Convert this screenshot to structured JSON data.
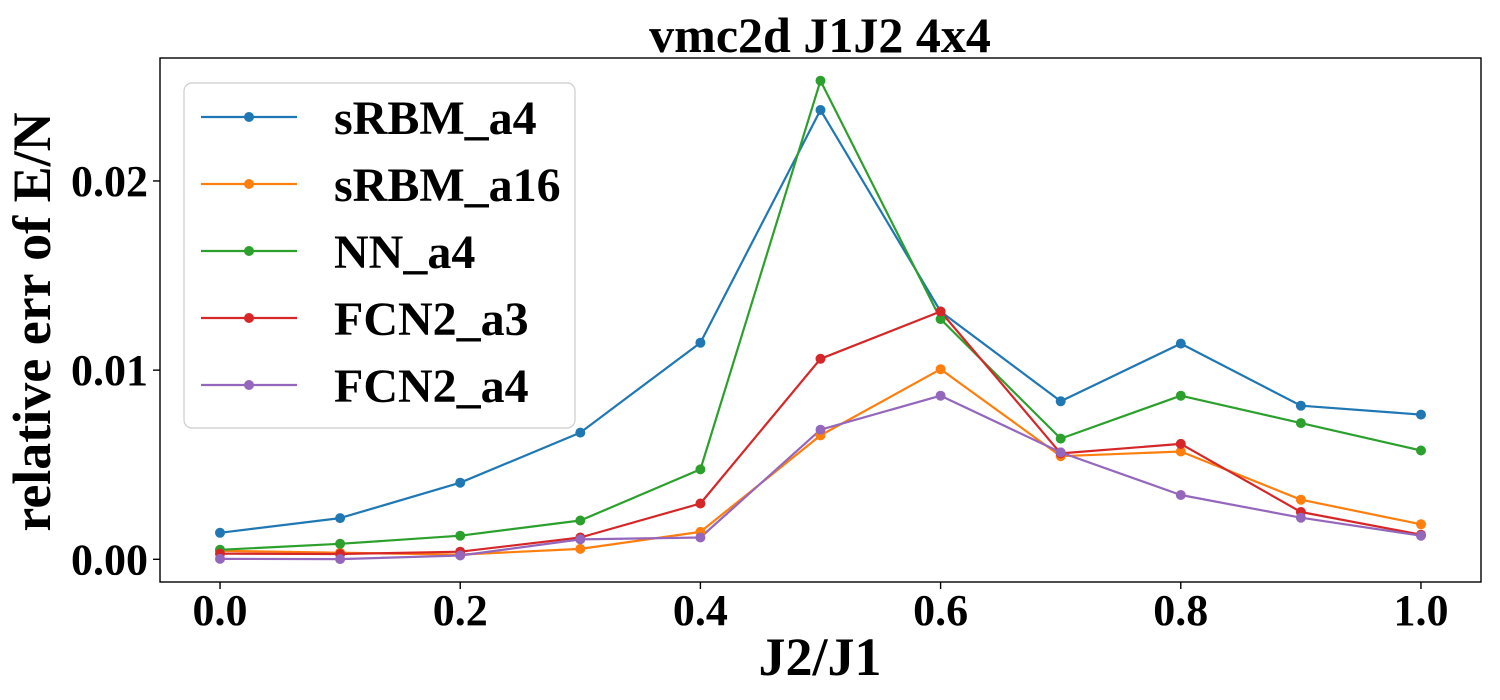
{
  "chart_data": {
    "type": "line",
    "title": "vmc2d J1J2 4x4",
    "xlabel": "J2/J1",
    "ylabel": "relative err of E/N",
    "x": [
      0.0,
      0.1,
      0.2,
      0.3,
      0.4,
      0.5,
      0.6,
      0.7,
      0.8,
      0.9,
      1.0
    ],
    "xlim": [
      -0.05,
      1.05
    ],
    "ylim": [
      -0.0012,
      0.0265
    ],
    "xticks": [
      0.0,
      0.2,
      0.4,
      0.6,
      0.8,
      1.0
    ],
    "xtick_labels": [
      "0.0",
      "0.2",
      "0.4",
      "0.6",
      "0.8",
      "1.0"
    ],
    "yticks": [
      0.0,
      0.01,
      0.02
    ],
    "ytick_labels": [
      "0.00",
      "0.01",
      "0.02"
    ],
    "grid": false,
    "legend_position": "top-left",
    "series": [
      {
        "name": "sRBM_a4",
        "color": "#1f77b4",
        "values": [
          0.0014,
          0.00218,
          0.00405,
          0.0067,
          0.01145,
          0.02375,
          0.0131,
          0.00835,
          0.0114,
          0.00812,
          0.00765
        ]
      },
      {
        "name": "sRBM_a16",
        "color": "#ff7f0e",
        "values": [
          0.00045,
          0.00035,
          0.00025,
          0.00055,
          0.00145,
          0.00655,
          0.01005,
          0.00545,
          0.0057,
          0.00315,
          0.00185
        ]
      },
      {
        "name": "NN_a4",
        "color": "#2ca02c",
        "values": [
          0.0005,
          0.00082,
          0.00125,
          0.00205,
          0.00475,
          0.0253,
          0.0127,
          0.00638,
          0.00865,
          0.0072,
          0.00575
        ]
      },
      {
        "name": "FCN2_a3",
        "color": "#d62728",
        "values": [
          0.0003,
          0.00028,
          0.0004,
          0.00115,
          0.00295,
          0.0106,
          0.0131,
          0.0056,
          0.0061,
          0.0025,
          0.0013
        ]
      },
      {
        "name": "FCN2_a4",
        "color": "#9467bd",
        "values": [
          2e-05,
          1e-05,
          0.0002,
          0.00105,
          0.00115,
          0.00685,
          0.00865,
          0.00565,
          0.0034,
          0.0022,
          0.00125
        ]
      }
    ]
  }
}
